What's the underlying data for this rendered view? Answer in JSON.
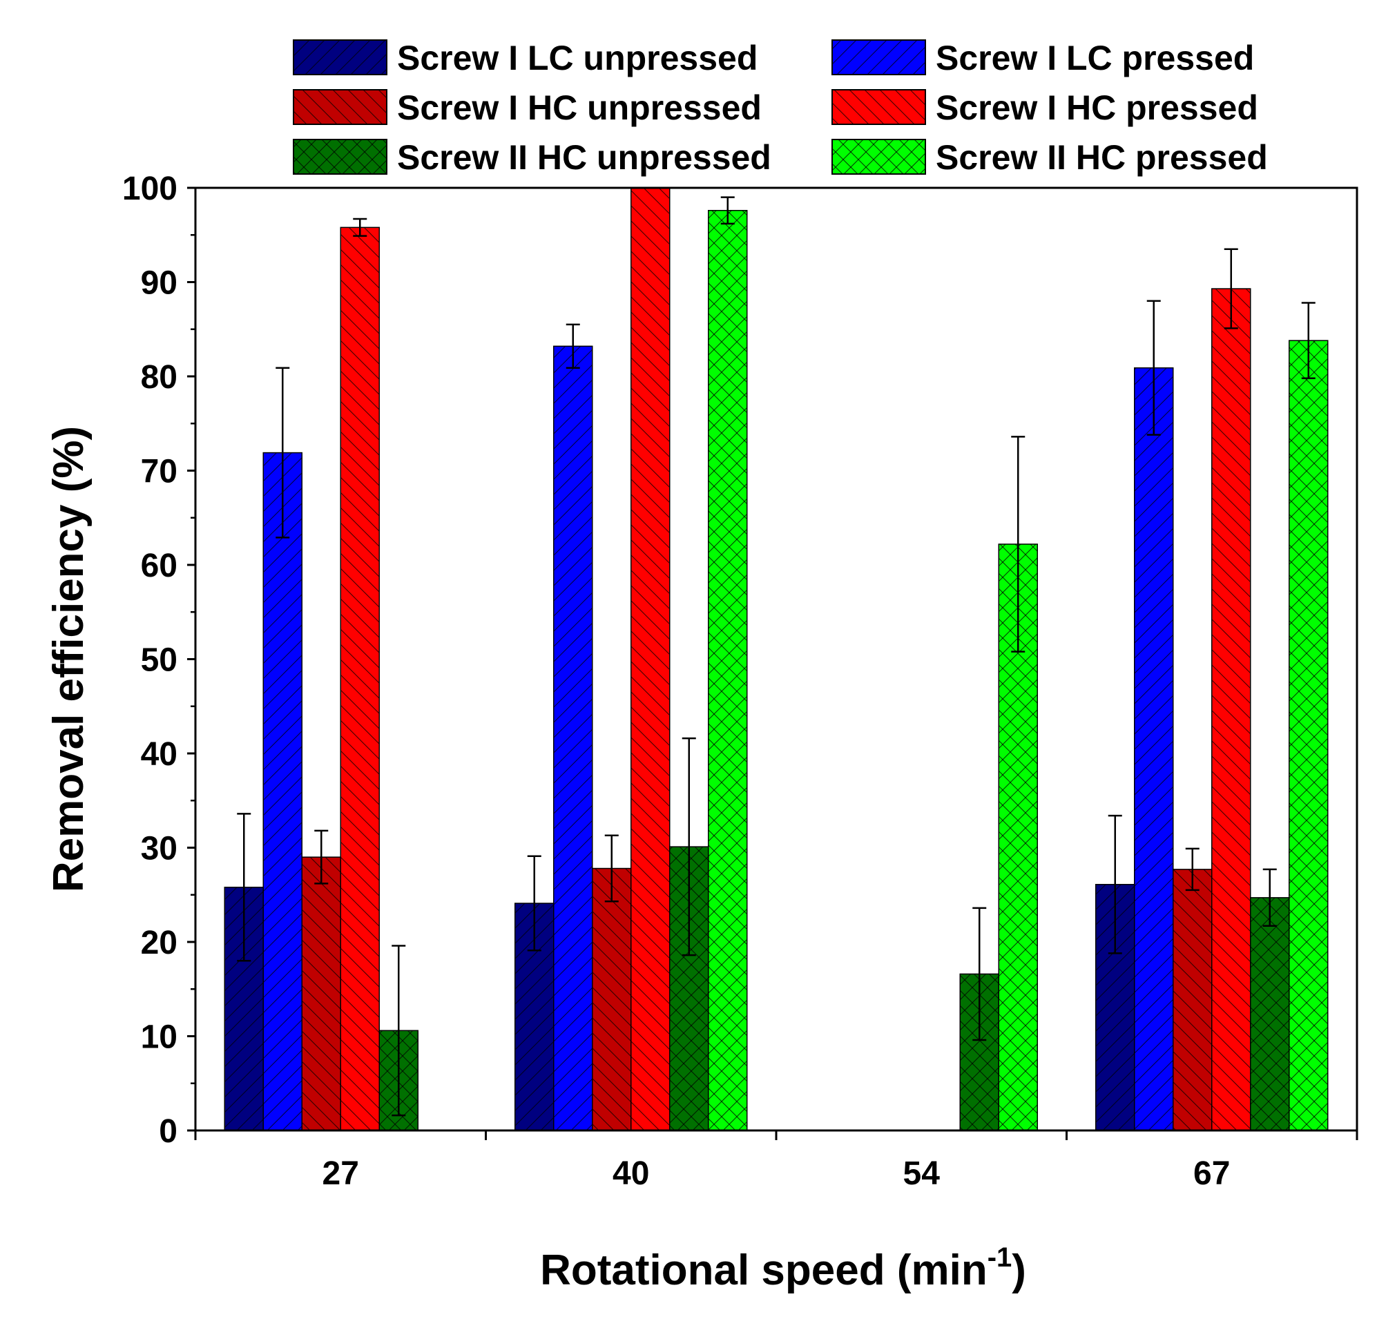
{
  "chart_data": {
    "type": "bar",
    "xlabel": "Rotational speed (min",
    "xlabel_superscript": "-1",
    "xlabel_suffix": ")",
    "ylabel": "Removal efficiency (%)",
    "ylim": [
      0,
      100
    ],
    "yticks": [
      0,
      10,
      20,
      30,
      40,
      50,
      60,
      70,
      80,
      90,
      100
    ],
    "categories": [
      "27",
      "40",
      "54",
      "67"
    ],
    "legend_position": "top",
    "series": [
      {
        "name": "Screw I LC unpressed",
        "color": "#000080",
        "pattern": "diag-fwd",
        "values": [
          25.8,
          24.1,
          null,
          26.1
        ],
        "errors": [
          7.8,
          5.0,
          null,
          7.3
        ]
      },
      {
        "name": "Screw I LC pressed",
        "color": "#0000ff",
        "pattern": "diag-fwd",
        "values": [
          71.9,
          83.2,
          null,
          80.9
        ],
        "errors": [
          9.0,
          2.3,
          null,
          7.1
        ]
      },
      {
        "name": "Screw I HC unpressed",
        "color": "#c00000",
        "pattern": "diag-back",
        "values": [
          29.0,
          27.8,
          null,
          27.7
        ],
        "errors": [
          2.8,
          3.5,
          null,
          2.2
        ]
      },
      {
        "name": "Screw I HC pressed",
        "color": "#ff0000",
        "pattern": "diag-back",
        "values": [
          95.8,
          100.0,
          null,
          89.3
        ],
        "errors": [
          0.9,
          0.0,
          null,
          4.2
        ]
      },
      {
        "name": "Screw II HC unpressed",
        "color": "#007000",
        "pattern": "cross",
        "values": [
          10.6,
          30.1,
          16.6,
          24.7
        ],
        "errors": [
          9.0,
          11.5,
          7.0,
          3.0
        ]
      },
      {
        "name": "Screw II HC pressed",
        "color": "#00ff00",
        "pattern": "cross",
        "values": [
          null,
          97.6,
          62.2,
          83.8
        ],
        "errors": [
          null,
          1.4,
          11.4,
          4.0
        ]
      }
    ]
  }
}
